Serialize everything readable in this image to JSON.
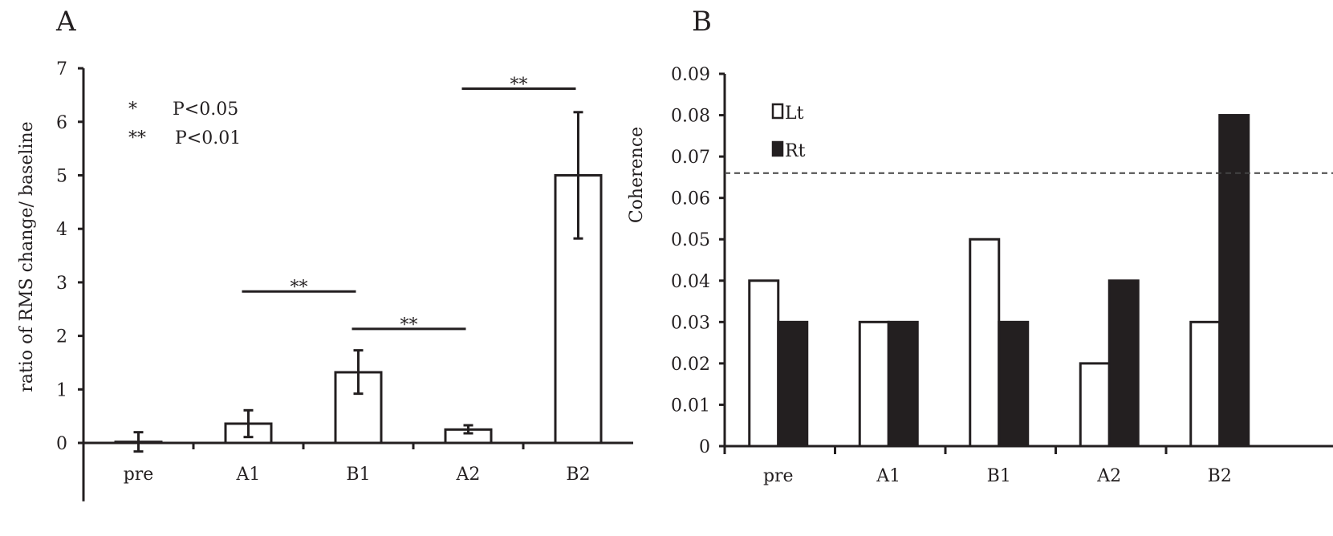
{
  "chart_data": [
    {
      "type": "bar",
      "panel_label": "A",
      "categories": [
        "pre",
        "A1",
        "B1",
        "A2",
        "B2"
      ],
      "values": [
        0.02,
        0.36,
        1.32,
        0.25,
        5.0
      ],
      "error_low": [
        -0.16,
        0.11,
        0.92,
        0.18,
        3.82
      ],
      "error_high": [
        0.2,
        0.61,
        1.73,
        0.33,
        6.18
      ],
      "ylabel": "ratio of RMS change/ baseline",
      "ylim": [
        -1,
        7
      ],
      "yticks": [
        "0",
        "1",
        "2",
        "3",
        "4",
        "5",
        "6",
        "7"
      ],
      "legend": [
        {
          "symbol": "*",
          "text": "P<0.05"
        },
        {
          "symbol": "**",
          "text": "P<0.01"
        }
      ],
      "significance": [
        {
          "from": "A1",
          "to": "B1",
          "y": 2.83,
          "label": "**"
        },
        {
          "from": "B1",
          "to": "A2",
          "y": 2.13,
          "label": "**"
        },
        {
          "from": "A2",
          "to": "B2",
          "y": 6.62,
          "label": "**"
        }
      ]
    },
    {
      "type": "bar",
      "panel_label": "B",
      "categories": [
        "pre",
        "A1",
        "B1",
        "A2",
        "B2"
      ],
      "series": [
        {
          "name": "Lt",
          "values": [
            0.04,
            0.03,
            0.05,
            0.02,
            0.03
          ],
          "color": "#ffffff"
        },
        {
          "name": "Rt",
          "values": [
            0.03,
            0.03,
            0.03,
            0.04,
            0.08
          ],
          "color": "#231f20"
        }
      ],
      "ylabel": "Coherence",
      "ylim": [
        0,
        0.09
      ],
      "yticks": [
        "0",
        "0.01",
        "0.02",
        "0.03",
        "0.04",
        "0.05",
        "0.06",
        "0.07",
        "0.08",
        "0.09"
      ],
      "threshold": 0.066
    }
  ]
}
